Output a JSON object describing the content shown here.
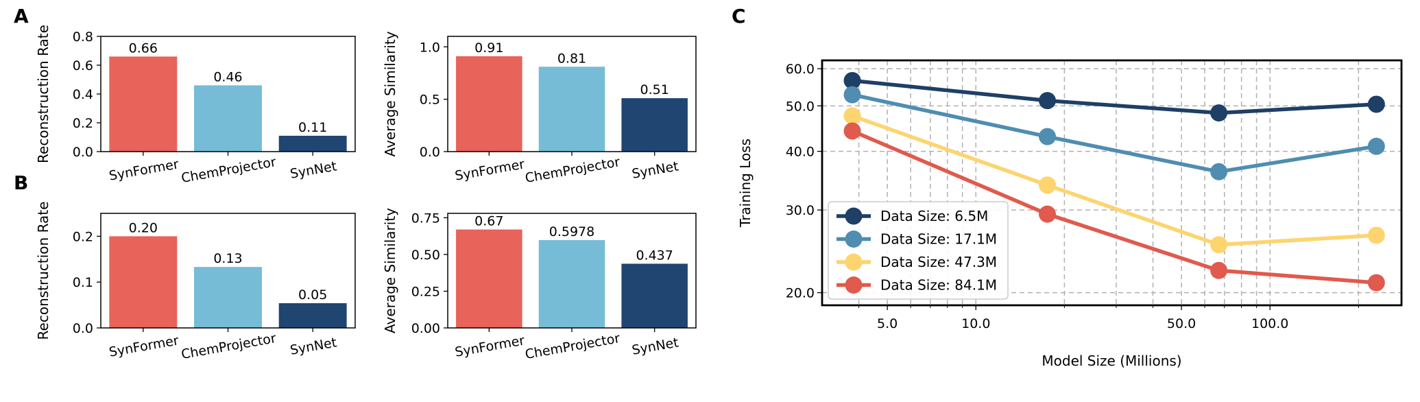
{
  "panel_labels": {
    "a": "A",
    "b": "B",
    "c": "C"
  },
  "colors": {
    "SynFormer": "#e8635a",
    "ChemProjector": "#76bcd6",
    "SynNet": "#204570",
    "series": [
      "#1e3f66",
      "#4f8db1",
      "#fdd46e",
      "#e05a4d"
    ],
    "grid": "#b0b0b0"
  },
  "chart_data": [
    {
      "id": "A1",
      "type": "bar",
      "categories": [
        "SynFormer",
        "ChemProjector",
        "SynNet"
      ],
      "values": [
        0.66,
        0.46,
        0.11
      ],
      "labels": [
        "0.66",
        "0.46",
        "0.11"
      ],
      "ylabel": "Reconstruction Rate",
      "ylim": [
        0,
        0.8
      ],
      "yticks": [
        0.0,
        0.2,
        0.4,
        0.6,
        0.8
      ],
      "ytick_labels": [
        "0.0",
        "0.2",
        "0.4",
        "0.6",
        "0.8"
      ]
    },
    {
      "id": "A2",
      "type": "bar",
      "categories": [
        "SynFormer",
        "ChemProjector",
        "SynNet"
      ],
      "values": [
        0.91,
        0.81,
        0.51
      ],
      "labels": [
        "0.91",
        "0.81",
        "0.51"
      ],
      "ylabel": "Average Similarity",
      "ylim": [
        0,
        1.1
      ],
      "yticks": [
        0.0,
        0.5,
        1.0
      ],
      "ytick_labels": [
        "0.0",
        "0.5",
        "1.0"
      ]
    },
    {
      "id": "B1",
      "type": "bar",
      "categories": [
        "SynFormer",
        "ChemProjector",
        "SynNet"
      ],
      "values": [
        0.2,
        0.133,
        0.054
      ],
      "labels": [
        "0.20",
        "0.13",
        "0.05"
      ],
      "ylabel": "Reconstruction Rate",
      "ylim": [
        0,
        0.25
      ],
      "yticks": [
        0.0,
        0.1,
        0.2
      ],
      "ytick_labels": [
        "0.0",
        "0.1",
        "0.2"
      ]
    },
    {
      "id": "B2",
      "type": "bar",
      "categories": [
        "SynFormer",
        "ChemProjector",
        "SynNet"
      ],
      "values": [
        0.67,
        0.5978,
        0.437
      ],
      "labels": [
        "0.67",
        "0.5978",
        "0.437"
      ],
      "ylabel": "Average Similarity",
      "ylim": [
        0,
        0.78
      ],
      "yticks": [
        0.0,
        0.25,
        0.5,
        0.75
      ],
      "ytick_labels": [
        "0.00",
        "0.25",
        "0.50",
        "0.75"
      ]
    },
    {
      "id": "C",
      "type": "line",
      "xscale": "log",
      "yscale": "log",
      "xlabel": "Model Size (Millions)",
      "ylabel": "Training Loss",
      "xlim": [
        3.0,
        280
      ],
      "ylim": [
        18.8,
        62.5
      ],
      "xticks": [
        5,
        10,
        50,
        100
      ],
      "xtick_labels": [
        "5.0",
        "10.0",
        "50.0",
        "100.0"
      ],
      "yticks": [
        20,
        30,
        40,
        50,
        60
      ],
      "ytick_labels": [
        "20.0",
        "30.0",
        "40.0",
        "50.0",
        "60.0"
      ],
      "grid": true,
      "legend_location": "lower-left",
      "x": [
        3.8,
        17.5,
        67,
        230
      ],
      "series": [
        {
          "name": "Data Size: 6.5M",
          "values": [
            56.6,
            51.3,
            48.3,
            50.4
          ]
        },
        {
          "name": "Data Size: 17.1M",
          "values": [
            52.8,
            43.0,
            36.2,
            41.0
          ]
        },
        {
          "name": "Data Size: 47.3M",
          "values": [
            47.6,
            33.9,
            25.3,
            26.5
          ]
        },
        {
          "name": "Data Size: 84.1M",
          "values": [
            44.2,
            29.4,
            22.3,
            21.0
          ]
        }
      ]
    }
  ]
}
